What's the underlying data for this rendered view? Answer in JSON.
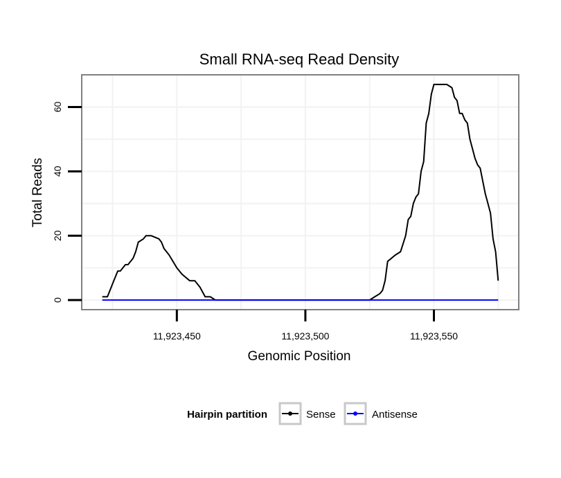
{
  "chart_data": {
    "type": "line",
    "title": "Small RNA-seq Read Density",
    "xlabel": "Genomic Position",
    "ylabel": "Total Reads",
    "xlim": [
      11923413,
      11923583
    ],
    "ylim": [
      -3,
      70
    ],
    "x_ticks": [
      11923450,
      11923500,
      11923550
    ],
    "x_tick_labels": [
      "11,923,450",
      "11,923,500",
      "11,923,550"
    ],
    "y_ticks": [
      0,
      20,
      40,
      60
    ],
    "y_tick_labels": [
      "0",
      "20",
      "40",
      "60"
    ],
    "grid": true,
    "legend": {
      "title": "Hairpin partition",
      "position": "bottom",
      "entries": [
        "Sense",
        "Antisense"
      ]
    },
    "series": [
      {
        "name": "Sense",
        "color": "#000000",
        "x": [
          11923421,
          11923423,
          11923424,
          11923425,
          11923427,
          11923428,
          11923430,
          11923431,
          11923433,
          11923434,
          11923435,
          11923437,
          11923438,
          11923440,
          11923443,
          11923444,
          11923445,
          11923447,
          11923450,
          11923452,
          11923455,
          11923457,
          11923459,
          11923461,
          11923463,
          11923465,
          11923467,
          11923469,
          11923470,
          11923473,
          11923475,
          11923520,
          11923525,
          11923527,
          11923529,
          11923530,
          11923531,
          11923532,
          11923535,
          11923537,
          11923539,
          11923540,
          11923541,
          11923542,
          11923543,
          11923544,
          11923545,
          11923546,
          11923547,
          11923548,
          11923549,
          11923550,
          11923551,
          11923552,
          11923553,
          11923555,
          11923557,
          11923558,
          11923559,
          11923560,
          11923561,
          11923562,
          11923563,
          11923564,
          11923565,
          11923566,
          11923567,
          11923568,
          11923569,
          11923570,
          11923571,
          11923572,
          11923573,
          11923574,
          11923575
        ],
        "values": [
          1,
          1,
          3,
          5,
          9,
          9,
          11,
          11,
          13,
          15,
          18,
          19,
          20,
          20,
          19,
          18,
          16,
          14,
          10,
          8,
          6,
          6,
          4,
          1,
          1,
          0,
          0,
          0,
          0,
          0,
          0,
          0,
          0,
          1,
          2,
          3,
          6,
          12,
          14,
          15,
          20,
          25,
          26,
          30,
          32,
          33,
          40,
          43,
          55,
          58,
          64,
          67,
          67,
          67,
          67,
          67,
          66,
          63,
          62,
          58,
          58,
          56,
          55,
          50,
          47,
          44,
          42,
          41,
          37,
          33,
          30,
          27,
          19,
          15,
          6
        ]
      },
      {
        "name": "Antisense",
        "color": "#0000ff",
        "x": [
          11923421,
          11923575
        ],
        "values": [
          0,
          0
        ]
      }
    ]
  }
}
